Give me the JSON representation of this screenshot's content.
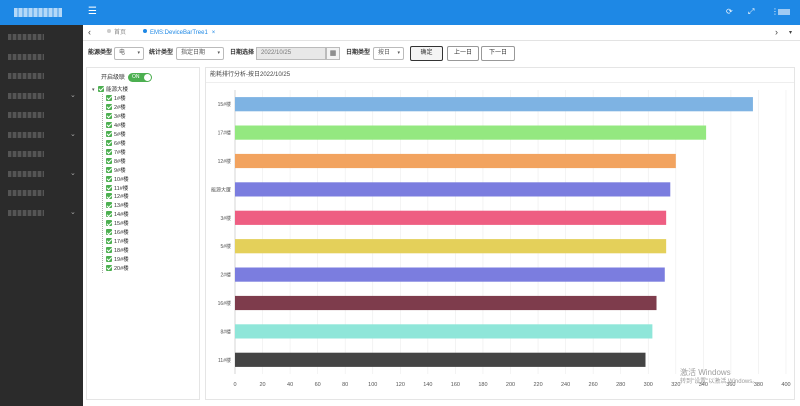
{
  "topbar": {
    "menu_icon": "menu-icon",
    "icons": [
      "refresh-icon",
      "fullscreen-icon"
    ],
    "user_caret": "▾"
  },
  "sidebar": {
    "item_count": 10,
    "expandable_rows": [
      3,
      5,
      7,
      9
    ]
  },
  "tabs": {
    "back_arrow": "‹",
    "next_arrow": "›",
    "items": [
      {
        "label": "首页",
        "active": false
      },
      {
        "label": "EMS:DeviceBarTree1",
        "active": true,
        "close": "×"
      }
    ]
  },
  "filter": {
    "energy_type_label": "能源类型",
    "energy_type_value": "电",
    "stat_type_label": "统计类型",
    "stat_type_value": "指定日期",
    "date_label": "日期选择",
    "date_value": "2022/10/25",
    "period_type_label": "日期类型",
    "period_type_value": "按日",
    "confirm_label": "确定",
    "prev_label": "上一日",
    "next_label": "下一日"
  },
  "left_panel": {
    "toggle_label": "开启级联",
    "toggle_value": "ON",
    "root": "能源大楼",
    "buildings": [
      "1#楼",
      "2#楼",
      "3#楼",
      "4#楼",
      "5#楼",
      "6#楼",
      "7#楼",
      "8#楼",
      "9#楼",
      "10#楼",
      "11#楼",
      "12#楼",
      "13#楼",
      "14#楼",
      "15#楼",
      "16#楼",
      "17#楼",
      "18#楼",
      "19#楼",
      "20#楼"
    ]
  },
  "chart_data": {
    "type": "bar",
    "orientation": "horizontal",
    "title": "能耗排行分析-按日2022/10/25",
    "categories": [
      "15#楼",
      "17#楼",
      "12#楼",
      "能源大厦",
      "3#楼",
      "5#楼",
      "2#楼",
      "16#楼",
      "8#楼",
      "11#楼"
    ],
    "values": [
      376,
      342,
      320,
      316,
      313,
      313,
      312,
      306,
      303,
      298
    ],
    "colors": [
      "#7eb3e3",
      "#94e880",
      "#f2a35f",
      "#7b7ddf",
      "#ee5e82",
      "#e4d05a",
      "#7b7ddf",
      "#7e3c4c",
      "#8fe6d9",
      "#444444"
    ],
    "x_ticks": [
      0,
      20,
      40,
      60,
      80,
      100,
      120,
      140,
      160,
      180,
      200,
      220,
      240,
      260,
      280,
      300,
      320,
      340,
      360,
      380,
      400
    ],
    "xlim": [
      0,
      400
    ],
    "grid": true
  },
  "watermark": {
    "line1": "激活 Windows",
    "line2": "转到\"设置\"以激活 Windows。"
  }
}
